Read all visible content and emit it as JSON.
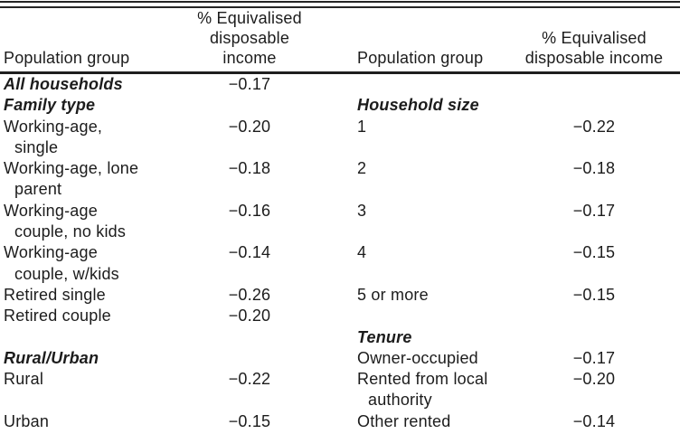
{
  "table": {
    "header": {
      "group_left": "Population group",
      "income_left": "% Equivalised\ndisposable income",
      "group_right": "Population group",
      "income_right": "% Equivalised\ndisposable income"
    },
    "rows": [
      {
        "l_label": "All households",
        "l_value": "−0.17",
        "r_label": "",
        "r_value": ""
      },
      {
        "l_label": "Family type",
        "l_value": "",
        "r_label": "Household size",
        "r_value": ""
      },
      {
        "l_label": "Working-age,\nsingle",
        "l_value": "−0.20",
        "r_label": "1",
        "r_value": "−0.22"
      },
      {
        "l_label": "Working-age, lone\nparent",
        "l_value": "−0.18",
        "r_label": "2",
        "r_value": "−0.18"
      },
      {
        "l_label": "Working-age\ncouple, no kids",
        "l_value": "−0.16",
        "r_label": "3",
        "r_value": "−0.17"
      },
      {
        "l_label": "Working-age\ncouple, w/kids",
        "l_value": "−0.14",
        "r_label": "4",
        "r_value": "−0.15"
      },
      {
        "l_label": "Retired single",
        "l_value": "−0.26",
        "r_label": "5 or more",
        "r_value": "−0.15"
      },
      {
        "l_label": "Retired couple",
        "l_value": "−0.20",
        "r_label": "",
        "r_value": ""
      },
      {
        "l_label": "",
        "l_value": "",
        "r_label": "Tenure",
        "r_value": ""
      },
      {
        "l_label": "Rural/Urban",
        "l_value": "",
        "r_label": "Owner-occupied",
        "r_value": "−0.17"
      },
      {
        "l_label": "Rural",
        "l_value": "−0.22",
        "r_label": "Rented from local\nauthority",
        "r_value": "−0.20"
      },
      {
        "l_label": "Urban",
        "l_value": "−0.15",
        "r_label": "Other rented",
        "r_value": "−0.14"
      }
    ]
  }
}
